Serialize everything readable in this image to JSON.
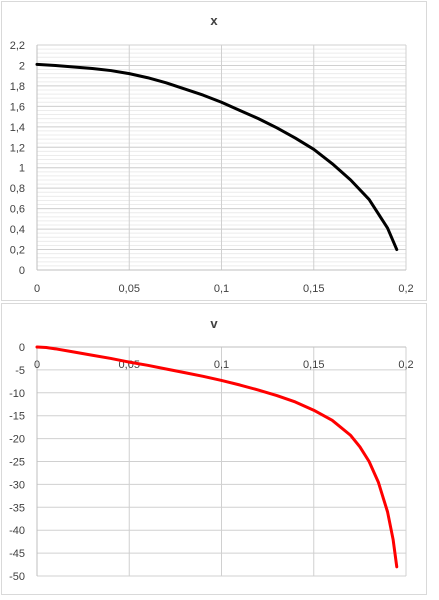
{
  "chart_data": [
    {
      "type": "line",
      "title": "x",
      "xlabel": "",
      "ylabel": "",
      "xlim": [
        0,
        0.2
      ],
      "ylim": [
        0,
        2.2
      ],
      "x_ticks": [
        "0",
        "0,05",
        "0,1",
        "0,15",
        "0,2"
      ],
      "y_ticks": [
        "2,2",
        "2",
        "1,8",
        "1,6",
        "1,4",
        "1,2",
        "1",
        "0,8",
        "0,6",
        "0,4",
        "0,2",
        "0"
      ],
      "grid": true,
      "legend": "none",
      "series": [
        {
          "color": "#000000",
          "x": [
            0,
            0.01,
            0.02,
            0.03,
            0.04,
            0.05,
            0.06,
            0.07,
            0.08,
            0.09,
            0.1,
            0.11,
            0.12,
            0.13,
            0.14,
            0.15,
            0.16,
            0.17,
            0.18,
            0.19,
            0.195
          ],
          "y": [
            2.01,
            2.0,
            1.985,
            1.97,
            1.95,
            1.92,
            1.88,
            1.83,
            1.77,
            1.71,
            1.64,
            1.56,
            1.48,
            1.39,
            1.29,
            1.18,
            1.04,
            0.88,
            0.69,
            0.41,
            0.2
          ]
        }
      ]
    },
    {
      "type": "line",
      "title": "v",
      "xlabel": "",
      "ylabel": "",
      "xlim": [
        0,
        0.2
      ],
      "ylim": [
        -50,
        0
      ],
      "x_ticks": [
        "0",
        "0,05",
        "0,1",
        "0,15",
        "0,2"
      ],
      "y_ticks": [
        "0",
        "-5",
        "-10",
        "-15",
        "-20",
        "-25",
        "-30",
        "-35",
        "-40",
        "-45",
        "-50"
      ],
      "grid": true,
      "legend": "none",
      "series": [
        {
          "color": "#ff0000",
          "x": [
            0,
            0.005,
            0.01,
            0.02,
            0.03,
            0.04,
            0.05,
            0.06,
            0.07,
            0.08,
            0.09,
            0.1,
            0.11,
            0.12,
            0.13,
            0.14,
            0.15,
            0.16,
            0.17,
            0.175,
            0.18,
            0.185,
            0.19,
            0.193,
            0.195
          ],
          "y": [
            0,
            -0.1,
            -0.4,
            -1.1,
            -1.8,
            -2.5,
            -3.3,
            -4.0,
            -4.8,
            -5.6,
            -6.4,
            -7.3,
            -8.3,
            -9.4,
            -10.6,
            -12.0,
            -13.8,
            -16.0,
            -19.3,
            -21.8,
            -25.0,
            -29.5,
            -36.0,
            -42.0,
            -48.0
          ]
        }
      ]
    }
  ]
}
